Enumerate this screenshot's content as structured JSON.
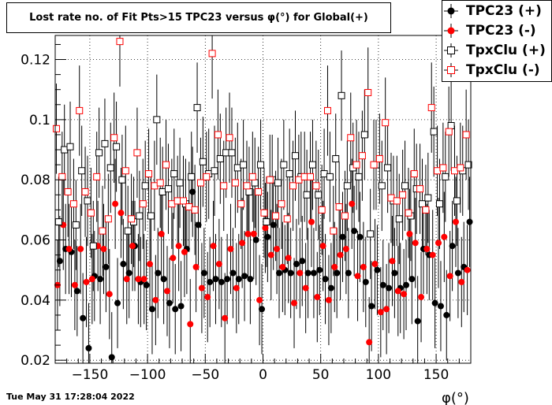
{
  "header": {
    "title": "Lost rate no. of Fit Pts>15 TPC23 versus φ(°) for Global(+)"
  },
  "footer": {
    "timestamp": "Tue May 31 17:28:04 2022"
  },
  "chart_data": {
    "type": "scatter",
    "title": "Lost rate no. of Fit Pts>15 TPC23 versus φ(°) for Global(+)",
    "xlabel": "φ(°)",
    "ylabel": "",
    "xlim": [
      -180,
      180
    ],
    "ylim": [
      0.019,
      0.128
    ],
    "xticks": [
      -150,
      -100,
      -50,
      0,
      50,
      100,
      150
    ],
    "xtick_labels": [
      "−150",
      "−100",
      "−50",
      "0",
      "50",
      "100",
      "150"
    ],
    "yticks": [
      0.02,
      0.04,
      0.06,
      0.08,
      0.1,
      0.12
    ],
    "ytick_labels": [
      "0.02",
      "0.04",
      "0.06",
      "0.08",
      "0.1",
      "0.12"
    ],
    "grid": true,
    "legend_position": "top-right",
    "series": [
      {
        "name": "TPC23 (+)",
        "color": "#000000",
        "marker": "filled-circle",
        "x": [
          -176,
          -171,
          -166,
          -161,
          -156,
          -151,
          -146,
          -141,
          -136,
          -131,
          -126,
          -121,
          -116,
          -111,
          -106,
          -101,
          -96,
          -91,
          -86,
          -81,
          -76,
          -71,
          -66,
          -61,
          -56,
          -51,
          -46,
          -41,
          -36,
          -31,
          -26,
          -21,
          -16,
          -11,
          -6,
          -1,
          4,
          9,
          14,
          19,
          24,
          29,
          34,
          39,
          44,
          49,
          54,
          59,
          64,
          69,
          74,
          79,
          84,
          89,
          94,
          99,
          104,
          109,
          114,
          119,
          124,
          129,
          134,
          139,
          144,
          149,
          154,
          159,
          164,
          169,
          174,
          179
        ],
        "y": [
          0.053,
          0.057,
          0.056,
          0.043,
          0.034,
          0.024,
          0.048,
          0.047,
          0.051,
          0.021,
          0.039,
          0.052,
          0.049,
          0.058,
          0.046,
          0.045,
          0.037,
          0.049,
          0.047,
          0.039,
          0.037,
          0.038,
          0.057,
          0.076,
          0.065,
          0.049,
          0.046,
          0.047,
          0.046,
          0.047,
          0.049,
          0.047,
          0.048,
          0.047,
          0.06,
          0.037,
          0.061,
          0.065,
          0.049,
          0.05,
          0.049,
          0.052,
          0.053,
          0.049,
          0.049,
          0.05,
          0.047,
          0.044,
          0.049,
          0.061,
          0.049,
          0.063,
          0.061,
          0.046,
          0.038,
          0.05,
          0.045,
          0.044,
          0.049,
          0.044,
          0.045,
          0.047,
          0.033,
          0.057,
          0.055,
          0.039,
          0.038,
          0.035,
          0.058,
          0.049,
          0.051,
          0.066
        ]
      },
      {
        "name": "TPC23 (-)",
        "color": "#ff0000",
        "marker": "filled-circle",
        "x": [
          -178,
          -173,
          -168,
          -163,
          -158,
          -153,
          -148,
          -143,
          -138,
          -133,
          -128,
          -123,
          -118,
          -113,
          -108,
          -103,
          -98,
          -93,
          -88,
          -83,
          -78,
          -73,
          -68,
          -63,
          -58,
          -53,
          -48,
          -43,
          -38,
          -33,
          -28,
          -23,
          -18,
          -13,
          -8,
          -3,
          2,
          7,
          12,
          17,
          22,
          27,
          32,
          37,
          42,
          47,
          52,
          57,
          62,
          67,
          72,
          77,
          82,
          87,
          92,
          97,
          102,
          107,
          112,
          117,
          122,
          127,
          132,
          137,
          142,
          147,
          152,
          157,
          162,
          167,
          172,
          177
        ],
        "y": [
          0.045,
          0.065,
          0.057,
          0.045,
          0.057,
          0.046,
          0.047,
          0.058,
          0.057,
          0.042,
          0.072,
          0.069,
          0.047,
          0.058,
          0.047,
          0.047,
          0.052,
          0.04,
          0.062,
          0.043,
          0.054,
          0.058,
          0.056,
          0.032,
          0.051,
          0.044,
          0.041,
          0.058,
          0.052,
          0.034,
          0.057,
          0.044,
          0.059,
          0.062,
          0.062,
          0.04,
          0.064,
          0.055,
          0.057,
          0.051,
          0.054,
          0.039,
          0.049,
          0.044,
          0.066,
          0.041,
          0.058,
          0.04,
          0.051,
          0.055,
          0.057,
          0.072,
          0.048,
          0.051,
          0.026,
          0.052,
          0.036,
          0.037,
          0.053,
          0.043,
          0.042,
          0.062,
          0.059,
          0.041,
          0.057,
          0.055,
          0.059,
          0.061,
          0.048,
          0.066,
          0.046,
          0.05
        ]
      },
      {
        "name": "TpxClu (+)",
        "color": "#000000",
        "marker": "open-square",
        "x": [
          -177,
          -172,
          -167,
          -162,
          -157,
          -152,
          -147,
          -142,
          -137,
          -132,
          -127,
          -122,
          -117,
          -112,
          -107,
          -102,
          -97,
          -92,
          -87,
          -82,
          -77,
          -72,
          -67,
          -62,
          -57,
          -52,
          -47,
          -42,
          -37,
          -32,
          -27,
          -22,
          -17,
          -12,
          -7,
          -2,
          3,
          8,
          13,
          18,
          23,
          28,
          33,
          38,
          43,
          48,
          53,
          58,
          63,
          68,
          73,
          78,
          83,
          88,
          93,
          98,
          103,
          108,
          113,
          118,
          123,
          128,
          133,
          138,
          143,
          148,
          153,
          158,
          163,
          168,
          173,
          178
        ],
        "y": [
          0.066,
          0.09,
          0.091,
          0.065,
          0.083,
          0.073,
          0.058,
          0.089,
          0.092,
          0.084,
          0.091,
          0.08,
          0.063,
          0.066,
          0.068,
          0.078,
          0.068,
          0.1,
          0.076,
          0.077,
          0.082,
          0.079,
          0.072,
          0.081,
          0.104,
          0.086,
          0.082,
          0.083,
          0.087,
          0.089,
          0.089,
          0.084,
          0.085,
          0.076,
          0.079,
          0.085,
          0.066,
          0.08,
          0.079,
          0.085,
          0.082,
          0.088,
          0.081,
          0.075,
          0.085,
          0.075,
          0.082,
          0.081,
          0.087,
          0.108,
          0.078,
          0.084,
          0.081,
          0.095,
          0.062,
          0.085,
          0.078,
          0.084,
          0.073,
          0.067,
          0.078,
          0.068,
          0.077,
          0.072,
          0.074,
          0.096,
          0.072,
          0.081,
          0.098,
          0.073,
          0.083,
          0.085
        ]
      },
      {
        "name": "TpxClu (-)",
        "color": "#ff0000",
        "marker": "open-square",
        "x": [
          -179,
          -174,
          -169,
          -164,
          -159,
          -154,
          -149,
          -144,
          -139,
          -134,
          -129,
          -124,
          -119,
          -114,
          -109,
          -104,
          -99,
          -94,
          -89,
          -84,
          -79,
          -74,
          -69,
          -64,
          -59,
          -54,
          -49,
          -44,
          -39,
          -34,
          -29,
          -24,
          -19,
          -14,
          -9,
          -4,
          1,
          6,
          11,
          16,
          21,
          26,
          31,
          36,
          41,
          46,
          51,
          56,
          61,
          66,
          71,
          76,
          81,
          86,
          91,
          96,
          101,
          106,
          111,
          116,
          121,
          126,
          131,
          136,
          141,
          146,
          151,
          156,
          161,
          166,
          171,
          176
        ],
        "y": [
          0.097,
          0.081,
          0.076,
          0.072,
          0.103,
          0.076,
          0.069,
          0.081,
          0.063,
          0.067,
          0.094,
          0.126,
          0.083,
          0.067,
          0.089,
          0.072,
          0.082,
          0.078,
          0.079,
          0.085,
          0.072,
          0.073,
          0.073,
          0.071,
          0.07,
          0.079,
          0.081,
          0.122,
          0.095,
          0.078,
          0.094,
          0.079,
          0.072,
          0.078,
          0.081,
          0.076,
          0.069,
          0.08,
          0.068,
          0.072,
          0.067,
          0.078,
          0.08,
          0.081,
          0.081,
          0.078,
          0.07,
          0.103,
          0.063,
          0.071,
          0.068,
          0.094,
          0.085,
          0.088,
          0.109,
          0.085,
          0.087,
          0.099,
          0.074,
          0.073,
          0.075,
          0.069,
          0.082,
          0.077,
          0.07,
          0.104,
          0.083,
          0.084,
          0.096,
          0.083,
          0.084,
          0.095
        ]
      }
    ],
    "error_bar_half_height": 0.015
  }
}
